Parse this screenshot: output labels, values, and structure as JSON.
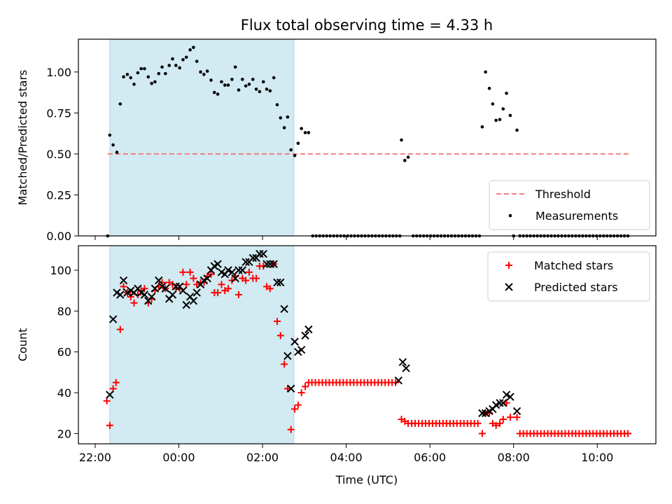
{
  "chart_data": {
    "type": "scatter",
    "title": "Flux total observing time = 4.33 h",
    "xlabel": "Time (UTC)",
    "x_ticks": [
      "22:00",
      "00:00",
      "02:00",
      "04:00",
      "06:00",
      "08:00",
      "10:00"
    ],
    "x_tick_values": [
      -2,
      0,
      2,
      4,
      6,
      8,
      10
    ],
    "x_range": [
      -2.4,
      11.4
    ],
    "shaded_interval": [
      -1.65,
      2.75
    ],
    "shaded_color": "#add8e6",
    "panels": [
      {
        "ylabel": "Matched/Predicted stars",
        "ylim": [
          0.0,
          1.2
        ],
        "y_ticks": [
          0.0,
          0.25,
          0.5,
          0.75,
          1.0
        ],
        "y_tick_labels": [
          "0.00",
          "0.25",
          "0.50",
          "0.75",
          "1.00"
        ],
        "legend_position": "lower-right",
        "threshold": {
          "name": "Threshold",
          "value": 0.5,
          "x_range": [
            -1.7,
            10.8
          ],
          "color": "#f08080"
        },
        "series": [
          {
            "name": "Measurements",
            "marker": "dot",
            "color": "#000000",
            "points": [
              [
                -1.7,
                0.0
              ],
              [
                -1.65,
                0.615
              ],
              [
                -1.57,
                0.555
              ],
              [
                -1.48,
                0.51
              ],
              [
                -1.4,
                0.805
              ],
              [
                -1.32,
                0.97
              ],
              [
                -1.23,
                0.985
              ],
              [
                -1.15,
                0.965
              ],
              [
                -1.07,
                0.925
              ],
              [
                -0.98,
                0.995
              ],
              [
                -0.9,
                1.02
              ],
              [
                -0.82,
                1.02
              ],
              [
                -0.73,
                0.97
              ],
              [
                -0.65,
                0.93
              ],
              [
                -0.57,
                0.94
              ],
              [
                -0.48,
                0.99
              ],
              [
                -0.4,
                1.03
              ],
              [
                -0.32,
                0.99
              ],
              [
                -0.23,
                1.04
              ],
              [
                -0.15,
                1.08
              ],
              [
                -0.07,
                1.04
              ],
              [
                0.02,
                1.025
              ],
              [
                0.1,
                1.075
              ],
              [
                0.18,
                1.09
              ],
              [
                0.27,
                1.135
              ],
              [
                0.35,
                1.15
              ],
              [
                0.43,
                1.065
              ],
              [
                0.52,
                1.0
              ],
              [
                0.6,
                0.985
              ],
              [
                0.68,
                1.005
              ],
              [
                0.77,
                0.95
              ],
              [
                0.85,
                0.875
              ],
              [
                0.93,
                0.865
              ],
              [
                1.02,
                0.94
              ],
              [
                1.1,
                0.92
              ],
              [
                1.18,
                0.92
              ],
              [
                1.27,
                0.955
              ],
              [
                1.35,
                1.03
              ],
              [
                1.43,
                0.89
              ],
              [
                1.52,
                0.955
              ],
              [
                1.6,
                0.915
              ],
              [
                1.68,
                0.925
              ],
              [
                1.77,
                0.955
              ],
              [
                1.85,
                0.895
              ],
              [
                1.93,
                0.88
              ],
              [
                2.02,
                0.94
              ],
              [
                2.1,
                0.895
              ],
              [
                2.18,
                0.885
              ],
              [
                2.27,
                0.965
              ],
              [
                2.35,
                0.8
              ],
              [
                2.43,
                0.72
              ],
              [
                2.52,
                0.66
              ],
              [
                2.6,
                0.725
              ],
              [
                2.68,
                0.525
              ],
              [
                2.77,
                0.49
              ],
              [
                2.85,
                0.565
              ],
              [
                2.93,
                0.655
              ],
              [
                3.02,
                0.63
              ],
              [
                3.1,
                0.63
              ],
              [
                5.32,
                0.585
              ],
              [
                5.4,
                0.46
              ],
              [
                5.48,
                0.48
              ],
              [
                7.25,
                0.665
              ],
              [
                7.33,
                1.0
              ],
              [
                7.42,
                0.9
              ],
              [
                7.5,
                0.805
              ],
              [
                7.58,
                0.705
              ],
              [
                7.67,
                0.71
              ],
              [
                7.75,
                0.775
              ],
              [
                7.83,
                0.87
              ],
              [
                7.92,
                0.735
              ],
              [
                8.08,
                0.645
              ],
              [
                8.0,
                0.0
              ]
            ],
            "zero_segments": [
              [
                3.2,
                5.3
              ],
              [
                5.6,
                7.2
              ],
              [
                8.15,
                10.8
              ]
            ],
            "zero_value": 0.0
          }
        ]
      },
      {
        "ylabel": "Count",
        "ylim": [
          15,
          112
        ],
        "y_ticks": [
          20,
          40,
          60,
          80,
          100
        ],
        "y_tick_labels": [
          "20",
          "40",
          "60",
          "80",
          "100"
        ],
        "legend_position": "top-right",
        "series": [
          {
            "name": "Matched stars",
            "marker": "plus",
            "color": "#ff0000",
            "points": [
              [
                -1.72,
                36
              ],
              [
                -1.65,
                24
              ],
              [
                -1.57,
                42
              ],
              [
                -1.5,
                45
              ],
              [
                -1.4,
                71
              ],
              [
                -1.32,
                92
              ],
              [
                -1.23,
                89
              ],
              [
                -1.15,
                87
              ],
              [
                -1.07,
                84
              ],
              [
                -0.98,
                88
              ],
              [
                -0.9,
                90
              ],
              [
                -0.82,
                91
              ],
              [
                -0.73,
                84
              ],
              [
                -0.65,
                86
              ],
              [
                -0.57,
                90
              ],
              [
                -0.48,
                92
              ],
              [
                -0.4,
                94
              ],
              [
                -0.32,
                91
              ],
              [
                -0.23,
                94
              ],
              [
                -0.15,
                93
              ],
              [
                -0.07,
                91
              ],
              [
                0.02,
                91
              ],
              [
                0.1,
                99
              ],
              [
                0.18,
                93
              ],
              [
                0.27,
                99
              ],
              [
                0.35,
                96
              ],
              [
                0.43,
                93
              ],
              [
                0.52,
                94
              ],
              [
                0.6,
                94
              ],
              [
                0.68,
                97
              ],
              [
                0.77,
                98
              ],
              [
                0.85,
                89
              ],
              [
                0.93,
                89
              ],
              [
                1.02,
                93
              ],
              [
                1.1,
                90
              ],
              [
                1.18,
                91
              ],
              [
                1.27,
                95
              ],
              [
                1.35,
                97
              ],
              [
                1.43,
                88
              ],
              [
                1.52,
                96
              ],
              [
                1.6,
                95
              ],
              [
                1.68,
                99
              ],
              [
                1.77,
                96
              ],
              [
                1.85,
                96
              ],
              [
                1.93,
                102
              ],
              [
                2.02,
                102
              ],
              [
                2.1,
                92
              ],
              [
                2.18,
                91
              ],
              [
                2.27,
                103
              ],
              [
                2.35,
                75
              ],
              [
                2.43,
                68
              ],
              [
                2.52,
                54
              ],
              [
                2.6,
                42
              ],
              [
                2.68,
                22
              ],
              [
                2.77,
                32
              ],
              [
                2.85,
                34
              ],
              [
                2.93,
                40
              ],
              [
                3.02,
                43
              ],
              [
                3.1,
                45
              ],
              [
                5.32,
                27
              ],
              [
                5.4,
                26
              ],
              [
                7.25,
                20
              ],
              [
                7.33,
                30
              ],
              [
                7.42,
                30
              ],
              [
                7.5,
                25
              ],
              [
                7.58,
                24
              ],
              [
                7.67,
                25
              ],
              [
                7.75,
                27
              ],
              [
                7.83,
                35
              ],
              [
                7.92,
                28
              ],
              [
                8.08,
                28
              ]
            ],
            "flat_segments": [
              [
                3.18,
                5.25,
                45
              ],
              [
                5.48,
                7.18,
                25
              ],
              [
                8.15,
                10.8,
                20
              ]
            ]
          },
          {
            "name": "Predicted stars",
            "marker": "x",
            "color": "#000000",
            "points": [
              [
                -1.65,
                39
              ],
              [
                -1.57,
                76
              ],
              [
                -1.48,
                89
              ],
              [
                -1.4,
                88
              ],
              [
                -1.32,
                95
              ],
              [
                -1.23,
                89
              ],
              [
                -1.15,
                90
              ],
              [
                -1.07,
                89
              ],
              [
                -0.98,
                91
              ],
              [
                -0.9,
                89
              ],
              [
                -0.82,
                88
              ],
              [
                -0.73,
                85
              ],
              [
                -0.65,
                87
              ],
              [
                -0.57,
                91
              ],
              [
                -0.48,
                95
              ],
              [
                -0.4,
                92
              ],
              [
                -0.32,
                91
              ],
              [
                -0.23,
                86
              ],
              [
                -0.15,
                88
              ],
              [
                -0.07,
                92
              ],
              [
                0.02,
                92
              ],
              [
                0.1,
                90
              ],
              [
                0.18,
                83
              ],
              [
                0.27,
                87
              ],
              [
                0.35,
                85
              ],
              [
                0.43,
                89
              ],
              [
                0.52,
                93
              ],
              [
                0.6,
                95
              ],
              [
                0.68,
                96
              ],
              [
                0.77,
                100
              ],
              [
                0.85,
                102
              ],
              [
                0.93,
                103
              ],
              [
                1.02,
                99
              ],
              [
                1.1,
                98
              ],
              [
                1.18,
                100
              ],
              [
                1.27,
                99
              ],
              [
                1.35,
                96
              ],
              [
                1.43,
                100
              ],
              [
                1.52,
                100
              ],
              [
                1.6,
                104
              ],
              [
                1.68,
                104
              ],
              [
                1.77,
                106
              ],
              [
                1.85,
                106
              ],
              [
                1.93,
                108
              ],
              [
                2.02,
                108
              ],
              [
                2.1,
                103
              ],
              [
                2.18,
                103
              ],
              [
                2.27,
                103
              ],
              [
                2.35,
                94
              ],
              [
                2.43,
                94
              ],
              [
                2.52,
                81
              ],
              [
                2.6,
                58
              ],
              [
                2.68,
                42
              ],
              [
                2.77,
                65
              ],
              [
                2.85,
                60
              ],
              [
                2.93,
                61
              ],
              [
                3.02,
                68
              ],
              [
                3.1,
                71
              ],
              [
                5.25,
                46
              ],
              [
                5.35,
                55
              ],
              [
                5.43,
                52
              ],
              [
                7.25,
                30
              ],
              [
                7.33,
                30
              ],
              [
                7.42,
                31
              ],
              [
                7.5,
                32
              ],
              [
                7.58,
                34
              ],
              [
                7.67,
                35
              ],
              [
                7.75,
                35
              ],
              [
                7.83,
                39
              ],
              [
                7.92,
                38
              ],
              [
                8.08,
                31
              ]
            ]
          }
        ]
      }
    ]
  }
}
